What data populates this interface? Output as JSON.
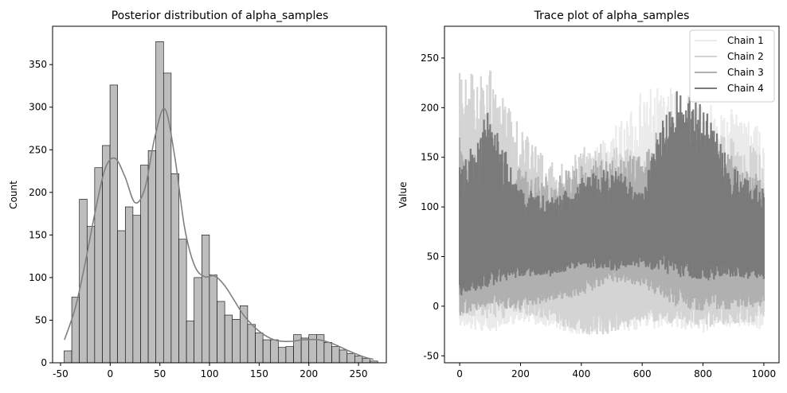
{
  "chart_data": [
    {
      "type": "bar",
      "title": "Posterior distribution of alpha_samples",
      "xlabel": "",
      "ylabel": "Count",
      "xlim": [
        -58,
        278
      ],
      "ylim": [
        0,
        395
      ],
      "xticks": [
        -50,
        0,
        50,
        100,
        150,
        200,
        250
      ],
      "yticks": [
        0,
        50,
        100,
        150,
        200,
        250,
        300,
        350
      ],
      "bin_edges": [
        -46.4,
        -38.7,
        -31.0,
        -23.3,
        -15.6,
        -7.9,
        -0.2,
        7.5,
        15.2,
        22.9,
        30.6,
        38.3,
        46.0,
        53.7,
        61.4,
        69.1,
        76.8,
        84.5,
        92.2,
        99.9,
        107.6,
        115.3,
        123.0,
        130.7,
        138.4,
        146.1,
        153.8,
        161.5,
        169.2,
        176.9,
        184.6,
        192.3,
        200.0,
        207.7,
        215.4,
        223.1,
        230.8,
        238.5,
        246.2,
        253.9,
        261.6,
        269.3
      ],
      "values": [
        14,
        77,
        192,
        160,
        229,
        255,
        326,
        155,
        183,
        173,
        232,
        249,
        377,
        340,
        222,
        145,
        49,
        100,
        150,
        103,
        72,
        56,
        51,
        67,
        45,
        35,
        27,
        27,
        18,
        19,
        33,
        29,
        33,
        33,
        24,
        19,
        15,
        11,
        8,
        5,
        2
      ],
      "kde": {
        "color": "#808080",
        "x": [
          -46,
          -35,
          -25,
          -15,
          -5,
          5,
          15,
          25,
          35,
          45,
          55,
          65,
          75,
          85,
          95,
          105,
          115,
          125,
          135,
          150,
          165,
          180,
          195,
          210,
          225,
          240,
          255,
          265
        ],
        "y": [
          27,
          65,
          118,
          178,
          228,
          240,
          218,
          188,
          205,
          265,
          298,
          242,
          158,
          114,
          101,
          102,
          91,
          73,
          55,
          37,
          27,
          25,
          27,
          27,
          22,
          14,
          7,
          4
        ]
      }
    },
    {
      "type": "line",
      "title": "Trace plot of alpha_samples",
      "xlabel": "",
      "ylabel": "Value",
      "xlim": [
        -50,
        1050
      ],
      "ylim": [
        -57,
        282
      ],
      "xticks": [
        0,
        200,
        400,
        600,
        800,
        1000
      ],
      "yticks": [
        -50,
        0,
        50,
        100,
        150,
        200,
        250
      ],
      "legend": "top-right",
      "series": [
        {
          "name": "Chain 1",
          "color": "#ebebeb",
          "x": [
            0,
            100,
            200,
            300,
            400,
            500,
            600,
            700,
            800,
            900,
            1000
          ],
          "lower": [
            -20,
            -28,
            -15,
            -22,
            -30,
            -25,
            -25,
            -22,
            -28,
            -20,
            -25
          ],
          "upper": [
            120,
            130,
            120,
            110,
            150,
            180,
            225,
            220,
            210,
            200,
            180
          ]
        },
        {
          "name": "Chain 2",
          "color": "#d4d4d4",
          "x": [
            0,
            100,
            200,
            300,
            400,
            500,
            600,
            700,
            800,
            900,
            1000
          ],
          "lower": [
            -12,
            -15,
            -8,
            -15,
            -30,
            -28,
            -15,
            -18,
            -22,
            -18,
            -15
          ],
          "upper": [
            235,
            240,
            180,
            150,
            160,
            170,
            150,
            170,
            175,
            170,
            160
          ]
        },
        {
          "name": "Chain 3",
          "color": "#b0b0b0",
          "x": [
            0,
            100,
            200,
            300,
            400,
            500,
            600,
            700,
            800,
            900,
            1000
          ],
          "lower": [
            -10,
            0,
            -5,
            5,
            10,
            25,
            20,
            0,
            -5,
            -3,
            0
          ],
          "upper": [
            170,
            150,
            140,
            130,
            145,
            150,
            155,
            200,
            180,
            150,
            130
          ]
        },
        {
          "name": "Chain 4",
          "color": "#7a7a7a",
          "x": [
            0,
            100,
            200,
            300,
            400,
            500,
            600,
            700,
            800,
            900,
            1000
          ],
          "lower": [
            10,
            20,
            30,
            30,
            40,
            35,
            40,
            30,
            25,
            30,
            25
          ],
          "upper": [
            140,
            200,
            120,
            110,
            130,
            140,
            120,
            220,
            210,
            140,
            120
          ]
        }
      ]
    }
  ]
}
